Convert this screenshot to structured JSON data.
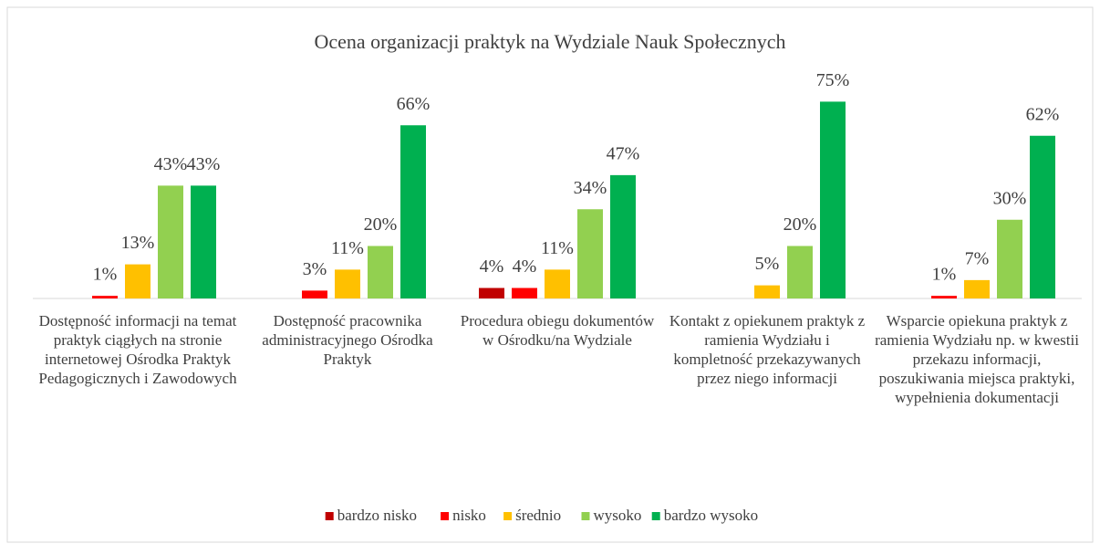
{
  "chart_data": {
    "type": "bar",
    "title": "Ocena organizacji  praktyk na Wydziale  Nauk Społecznych",
    "categories": [
      "Dostępność informacji na temat praktyk ciągłych na stronie internetowej Ośrodka Praktyk Pedagogicznych i Zawodowych",
      "Dostępność pracownika administracyjnego Ośrodka Praktyk",
      "Procedura obiegu dokumentów w Ośrodku/na Wydziale",
      "Kontakt z opiekunem praktyk z ramienia Wydziału i kompletność przekazywanych przez niego informacji",
      "Wsparcie opiekuna praktyk z ramienia Wydziału np. w kwestii przekazu informacji, poszukiwania miejsca praktyki, wypełnienia dokumentacji"
    ],
    "series": [
      {
        "name": "bardzo nisko",
        "color": "#c00000",
        "values": [
          null,
          null,
          4,
          null,
          null
        ],
        "value_labels": [
          null,
          null,
          "4%",
          null,
          null
        ]
      },
      {
        "name": "nisko",
        "color": "#ff0000",
        "values": [
          1,
          3,
          4,
          null,
          1
        ],
        "value_labels": [
          "1%",
          "3%",
          "4%",
          null,
          "1%"
        ]
      },
      {
        "name": "średnio",
        "color": "#ffc000",
        "values": [
          13,
          11,
          11,
          5,
          7
        ],
        "value_labels": [
          "13%",
          "11%",
          "11%",
          "5%",
          "7%"
        ]
      },
      {
        "name": "wysoko",
        "color": "#92d050",
        "values": [
          43,
          20,
          34,
          20,
          30
        ],
        "value_labels": [
          "43%",
          "20%",
          "34%",
          "20%",
          "30%"
        ]
      },
      {
        "name": "bardzo wysoko",
        "color": "#00b050",
        "values": [
          43,
          66,
          47,
          75,
          62
        ],
        "value_labels": [
          "43%",
          "66%",
          "47%",
          "75%",
          "62%"
        ]
      }
    ],
    "ylim": [
      0,
      80
    ]
  }
}
